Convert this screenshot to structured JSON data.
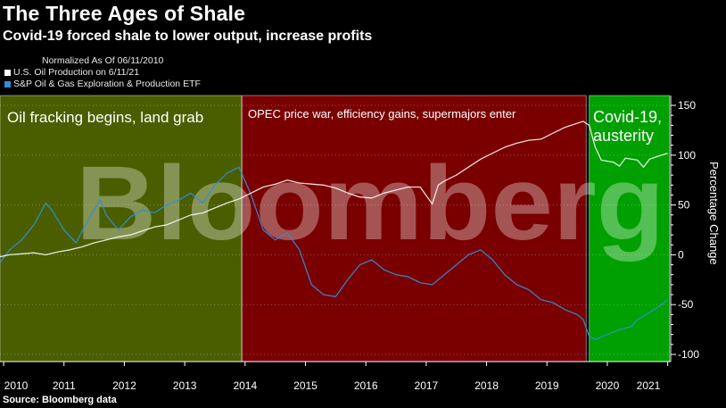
{
  "header": {
    "title": "The Three Ages of Shale",
    "subtitle": "Covid-19 forced shale to lower output, increase profits"
  },
  "legend": {
    "note": "Normalized As Of 06/11/2010",
    "items": [
      {
        "label": "U.S. Oil Production on 6/11/21",
        "color": "#ffffff"
      },
      {
        "label": "S&P Oil & Gas Exploration & Production ETF",
        "color": "#2f8fd8"
      }
    ]
  },
  "footer": {
    "source": "Source: Bloomberg data"
  },
  "watermark": "Bloomberg",
  "chart_data": {
    "type": "line",
    "ylabel": "Percentage Change",
    "ylim": [
      -100,
      150
    ],
    "yticks": [
      -100,
      -50,
      0,
      50,
      100,
      150
    ],
    "xlim": [
      2010.44,
      2021.55
    ],
    "xticks": [
      {
        "label": "2010",
        "x": 2010.0
      },
      {
        "label": "2011",
        "x": 2011.0
      },
      {
        "label": "2012",
        "x": 2012.0
      },
      {
        "label": "2013",
        "x": 2013.0
      },
      {
        "label": "2014",
        "x": 2014.0
      },
      {
        "label": "2015",
        "x": 2015.0
      },
      {
        "label": "2016",
        "x": 2016.0
      },
      {
        "label": "2017",
        "x": 2017.0
      },
      {
        "label": "2018",
        "x": 2018.0
      },
      {
        "label": "2019",
        "x": 2019.0
      },
      {
        "label": "2020",
        "x": 2020.0
      },
      {
        "label": "2021",
        "x": 2021.0
      }
    ],
    "eras": [
      {
        "label": "Oil fracking begins, land grab",
        "start": 2010.44,
        "end": 2014.44,
        "color": "#4a5e00"
      },
      {
        "label": "OPEC price war, efficiency gains, supermajors enter",
        "start": 2014.45,
        "end": 2020.15,
        "color": "#7a0000"
      },
      {
        "label": "Covid-19, austerity",
        "start": 2020.2,
        "end": 2021.53,
        "color": "#00a000"
      }
    ],
    "series": [
      {
        "name": "U.S. Oil Production on 6/11/21",
        "color": "#ffffff",
        "x": [
          2010.44,
          2010.6,
          2010.8,
          2011.0,
          2011.2,
          2011.4,
          2011.6,
          2011.8,
          2012.0,
          2012.2,
          2012.4,
          2012.6,
          2012.8,
          2013.0,
          2013.2,
          2013.4,
          2013.6,
          2013.8,
          2014.0,
          2014.2,
          2014.4,
          2014.6,
          2014.8,
          2015.0,
          2015.2,
          2015.4,
          2015.6,
          2015.8,
          2016.0,
          2016.2,
          2016.4,
          2016.6,
          2016.8,
          2017.0,
          2017.2,
          2017.4,
          2017.6,
          2017.7,
          2017.8,
          2018.0,
          2018.2,
          2018.4,
          2018.6,
          2018.8,
          2019.0,
          2019.2,
          2019.4,
          2019.6,
          2019.8,
          2020.0,
          2020.1,
          2020.2,
          2020.3,
          2020.4,
          2020.6,
          2020.7,
          2020.8,
          2021.0,
          2021.1,
          2021.2,
          2021.4,
          2021.5
        ],
        "values": [
          -2,
          0,
          1,
          2,
          0,
          3,
          5,
          8,
          12,
          15,
          18,
          20,
          24,
          28,
          30,
          35,
          40,
          42,
          47,
          52,
          56,
          62,
          68,
          71,
          75,
          72,
          71,
          70,
          67,
          62,
          58,
          57,
          62,
          65,
          68,
          68,
          51,
          70,
          74,
          80,
          88,
          96,
          102,
          108,
          112,
          115,
          116,
          122,
          128,
          132,
          134,
          130,
          108,
          95,
          93,
          89,
          97,
          95,
          88,
          96,
          100,
          102
        ]
      },
      {
        "name": "S&P Oil & Gas Exploration & Production ETF",
        "color": "#2f8fd8",
        "x": [
          2010.44,
          2010.6,
          2010.8,
          2011.0,
          2011.2,
          2011.3,
          2011.5,
          2011.7,
          2011.9,
          2012.1,
          2012.2,
          2012.4,
          2012.6,
          2012.8,
          2013.0,
          2013.2,
          2013.4,
          2013.6,
          2013.8,
          2014.0,
          2014.2,
          2014.4,
          2014.6,
          2014.8,
          2015.0,
          2015.2,
          2015.4,
          2015.6,
          2015.8,
          2016.0,
          2016.2,
          2016.4,
          2016.6,
          2016.8,
          2017.0,
          2017.2,
          2017.4,
          2017.6,
          2017.8,
          2018.0,
          2018.2,
          2018.4,
          2018.6,
          2018.8,
          2019.0,
          2019.2,
          2019.4,
          2019.6,
          2019.8,
          2020.0,
          2020.1,
          2020.2,
          2020.3,
          2020.5,
          2020.7,
          2020.9,
          2021.0,
          2021.2,
          2021.4,
          2021.5
        ],
        "values": [
          -8,
          5,
          15,
          30,
          52,
          45,
          25,
          12,
          35,
          55,
          40,
          25,
          38,
          45,
          42,
          50,
          55,
          62,
          52,
          70,
          82,
          88,
          60,
          25,
          15,
          22,
          5,
          -30,
          -40,
          -42,
          -25,
          -10,
          -5,
          -15,
          -20,
          -22,
          -28,
          -30,
          -20,
          -10,
          0,
          5,
          -5,
          -20,
          -30,
          -35,
          -45,
          -48,
          -55,
          -60,
          -65,
          -82,
          -85,
          -80,
          -75,
          -72,
          -65,
          -58,
          -50,
          -45
        ]
      }
    ]
  }
}
